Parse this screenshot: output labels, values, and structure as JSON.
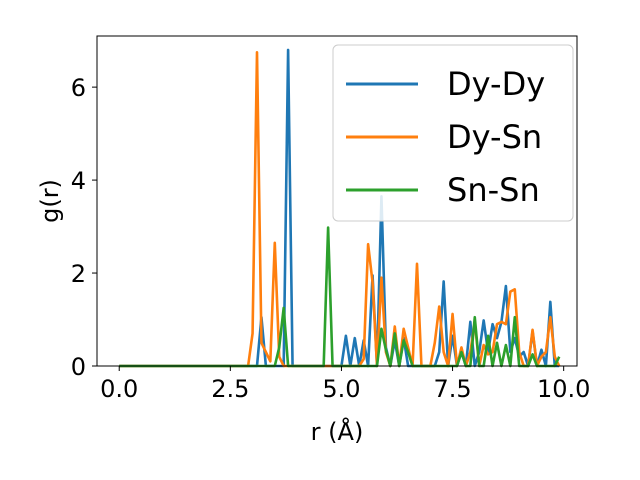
{
  "chart_data": {
    "type": "line",
    "xlabel": "r (Å)",
    "ylabel": "g(r)",
    "xlim": [
      -0.5,
      10.3
    ],
    "ylim": [
      0,
      7.1
    ],
    "xticks": [
      0.0,
      2.5,
      5.0,
      7.5,
      10.0
    ],
    "xtick_labels": [
      "0.0",
      "2.5",
      "5.0",
      "7.5",
      "10.0"
    ],
    "yticks": [
      0,
      2,
      4,
      6
    ],
    "ytick_labels": [
      "0",
      "2",
      "4",
      "6"
    ],
    "grid": false,
    "legend": "upper right",
    "series": [
      {
        "name": "Dy-Dy",
        "color": "#1f77b4",
        "x": [
          0,
          3.1,
          3.2,
          3.3,
          3.7,
          3.8,
          3.9,
          5.0,
          5.1,
          5.2,
          5.3,
          5.4,
          5.5,
          5.6,
          5.7,
          5.8,
          5.9,
          6.0,
          6.1,
          6.2,
          6.3,
          6.4,
          6.5,
          7.1,
          7.2,
          7.3,
          7.4,
          7.5,
          7.6,
          7.7,
          7.8,
          7.9,
          8.0,
          8.1,
          8.2,
          8.3,
          8.4,
          8.5,
          8.6,
          8.7,
          8.8,
          8.9,
          9.0,
          9.1,
          9.2,
          9.3,
          9.4,
          9.5,
          9.6,
          9.7,
          9.8,
          9.9
        ],
        "y": [
          0,
          0,
          1.05,
          0,
          0,
          6.8,
          0,
          0,
          0.65,
          0,
          0.6,
          0,
          0.55,
          0,
          1.95,
          0,
          3.65,
          0.4,
          0,
          0.55,
          0,
          0.6,
          0,
          0,
          0.3,
          1.82,
          0,
          0.65,
          0,
          0.3,
          0,
          0.95,
          0,
          0.3,
          0.98,
          0.3,
          0.9,
          0.6,
          0.95,
          1.72,
          0.3,
          0.6,
          0.2,
          0.3,
          0,
          0.75,
          0,
          0.35,
          0,
          1.38,
          0,
          0
        ]
      },
      {
        "name": "Dy-Sn",
        "color": "#ff7f0e",
        "x": [
          0,
          2.9,
          3.0,
          3.1,
          3.2,
          3.3,
          3.4,
          3.5,
          3.6,
          3.7,
          3.8,
          3.9,
          5.4,
          5.5,
          5.6,
          5.7,
          5.8,
          5.9,
          6.0,
          6.1,
          6.2,
          6.3,
          6.4,
          6.5,
          6.6,
          6.7,
          6.8,
          6.9,
          7.0,
          7.1,
          7.2,
          7.3,
          7.4,
          7.5,
          7.6,
          7.7,
          7.8,
          7.9,
          8.0,
          8.1,
          8.2,
          8.3,
          8.4,
          8.5,
          8.6,
          8.7,
          8.8,
          8.9,
          9.0,
          9.1,
          9.2,
          9.3,
          9.4,
          9.5,
          9.6,
          9.7,
          9.8,
          9.9
        ],
        "y": [
          0,
          0,
          0.7,
          6.75,
          0.5,
          0.3,
          0.1,
          2.65,
          0.2,
          0,
          0,
          0,
          0,
          0.15,
          2.62,
          1.8,
          0,
          1.9,
          0.3,
          0,
          0.85,
          0,
          0.8,
          0.4,
          0,
          2.2,
          0,
          0,
          0,
          0.5,
          1.28,
          0.3,
          0,
          1.12,
          0,
          0.4,
          0,
          0.3,
          0.95,
          0,
          0.45,
          0.25,
          0.3,
          0.9,
          0.95,
          0.9,
          1.6,
          1.65,
          0.3,
          0,
          0,
          0.78,
          0,
          0.2,
          0.3,
          1.05,
          0.2,
          0
        ]
      },
      {
        "name": "Sn-Sn",
        "color": "#2ca02c",
        "x": [
          0,
          3.3,
          3.4,
          3.5,
          3.6,
          3.7,
          3.8,
          3.9,
          4.6,
          4.7,
          4.8,
          5.7,
          5.8,
          5.9,
          6.0,
          6.1,
          6.2,
          6.3,
          6.4,
          6.5,
          6.6,
          7.6,
          7.7,
          7.8,
          7.9,
          8.0,
          8.1,
          8.2,
          8.3,
          8.4,
          8.5,
          8.6,
          8.7,
          8.8,
          8.9,
          9.0,
          9.1,
          9.2,
          9.3,
          9.4,
          9.5,
          9.6,
          9.7,
          9.8,
          9.9
        ],
        "y": [
          0,
          0,
          0,
          0,
          0.4,
          1.25,
          0,
          0,
          0,
          2.98,
          0,
          0,
          0,
          0.8,
          0.35,
          0,
          0.7,
          0,
          0.55,
          0.3,
          0,
          0,
          0.3,
          0,
          0,
          1.05,
          0,
          0,
          0.65,
          0,
          0.5,
          0,
          0.45,
          0,
          1.05,
          0,
          0,
          0,
          0.25,
          0,
          0,
          0,
          0,
          0,
          0.2
        ]
      }
    ]
  }
}
